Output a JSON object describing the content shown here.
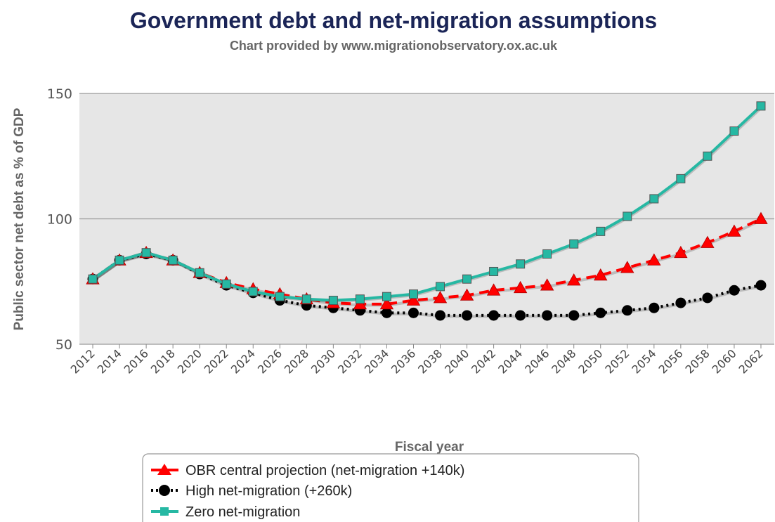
{
  "chart_data": {
    "type": "line",
    "title": "Government debt and net-migration assumptions",
    "subtitle": "Chart provided by www.migrationobservatory.ox.ac.uk",
    "xlabel": "Fiscal year",
    "ylabel": "Public sector net debt as % of GDP",
    "ylim": [
      50,
      150
    ],
    "yticks": [
      50,
      100,
      150
    ],
    "x_tick_labels": [
      "2012",
      "2014",
      "2016",
      "2018",
      "2020",
      "2022",
      "2024",
      "2026",
      "2028",
      "2030",
      "2032",
      "2034",
      "2036",
      "2038",
      "2040",
      "2042",
      "2044",
      "2046",
      "2048",
      "2050",
      "2052",
      "2054",
      "2056",
      "2058",
      "2060",
      "2062"
    ],
    "x": [
      2012,
      2014,
      2016,
      2018,
      2020,
      2022,
      2024,
      2026,
      2028,
      2030,
      2032,
      2034,
      2036,
      2038,
      2040,
      2042,
      2044,
      2046,
      2048,
      2050,
      2052,
      2054,
      2056,
      2058,
      2060,
      2062
    ],
    "grid": true,
    "legend_position": "bottom-center",
    "series": [
      {
        "name": "OBR central projection (net-migration +140k)",
        "color": "#ff0000",
        "marker": "triangle",
        "line_style": "dashed",
        "values": [
          76,
          83.5,
          86.5,
          83.5,
          78.5,
          74.5,
          72,
          70,
          68,
          66.5,
          66,
          66,
          67.5,
          68.5,
          69.5,
          71.5,
          72.5,
          73.5,
          75.5,
          77.5,
          80.5,
          83.5,
          86.5,
          90.5,
          95,
          100
        ]
      },
      {
        "name": "High net-migration (+260k)",
        "color": "#000000",
        "marker": "circle",
        "line_style": "dotted",
        "values": [
          76,
          83.5,
          86,
          83.5,
          78,
          73.5,
          70.5,
          67.5,
          65.5,
          64.5,
          63.5,
          62.5,
          62.5,
          61.5,
          61.5,
          61.5,
          61.5,
          61.5,
          61.5,
          62.5,
          63.5,
          64.5,
          66.5,
          68.5,
          71.5,
          73.5
        ]
      },
      {
        "name": "Zero net-migration",
        "color": "#26b8a3",
        "marker": "square",
        "line_style": "solid",
        "values": [
          76,
          83.5,
          86.5,
          83.5,
          78.5,
          74,
          71,
          69,
          68,
          67.5,
          68,
          69,
          70,
          73,
          76,
          79,
          82,
          86,
          90,
          95,
          101,
          108,
          116,
          125,
          135,
          145
        ]
      }
    ]
  }
}
